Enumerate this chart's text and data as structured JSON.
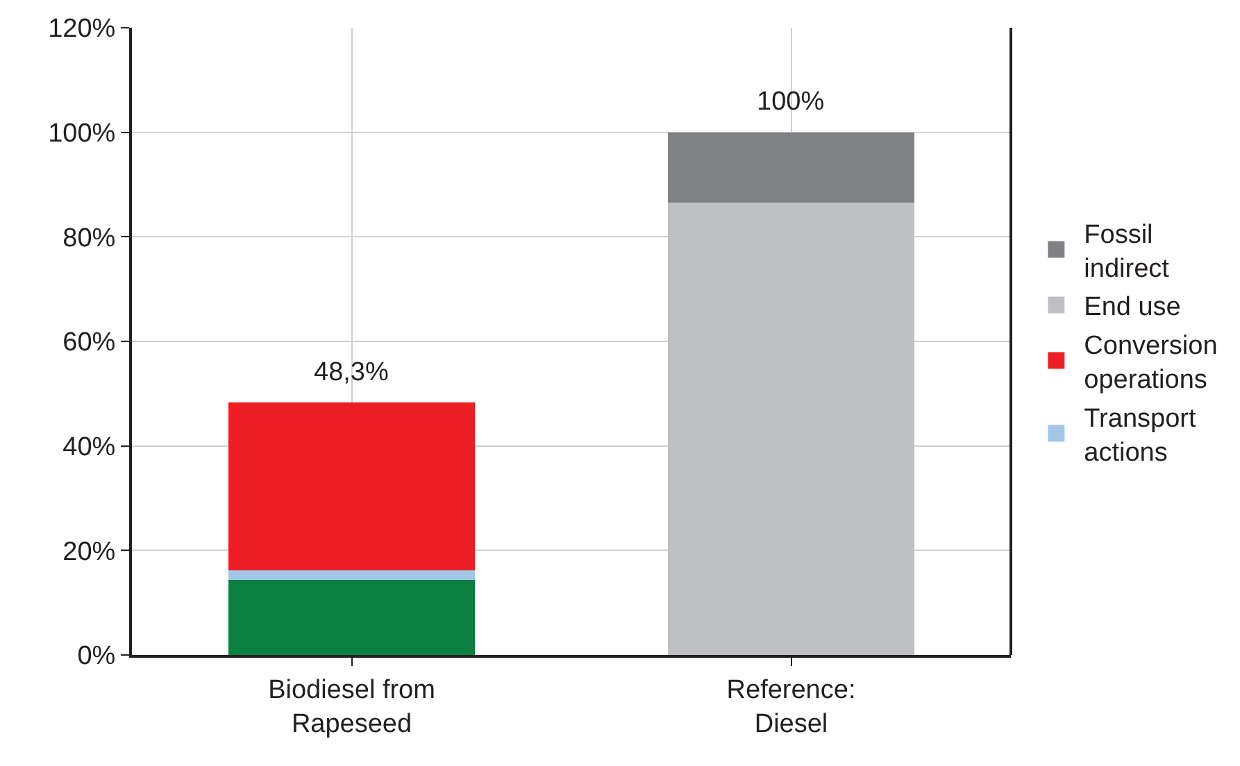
{
  "chart_data": {
    "type": "bar",
    "stacked": true,
    "categories": [
      "Biodiesel from Rapeseed",
      "Reference: Diesel"
    ],
    "series": [
      {
        "color": "#0a8040",
        "values": [
          14.4,
          null
        ]
      },
      {
        "name": "Transport actions",
        "color": "#a3c6e8",
        "values": [
          1.8,
          null
        ]
      },
      {
        "name": "Conversion operations",
        "color": "#ee1f24",
        "values": [
          32.1,
          null
        ]
      },
      {
        "name": "End use",
        "color": "#bfc0c4",
        "values": [
          null,
          86.6
        ]
      },
      {
        "name": "Fossil indirect",
        "color": "#808184",
        "values": [
          null,
          13.4
        ]
      }
    ],
    "totals": [
      "48,3%",
      "100%"
    ],
    "ylim": [
      0,
      120
    ],
    "yticks": [
      {
        "value": 0,
        "label": "0%"
      },
      {
        "value": 20,
        "label": "20%"
      },
      {
        "value": 40,
        "label": "40%"
      },
      {
        "value": 60,
        "label": "60%"
      },
      {
        "value": 80,
        "label": "80%"
      },
      {
        "value": 100,
        "label": "100%"
      },
      {
        "value": 120,
        "label": "120%"
      }
    ],
    "grid": true,
    "legend": "right"
  }
}
